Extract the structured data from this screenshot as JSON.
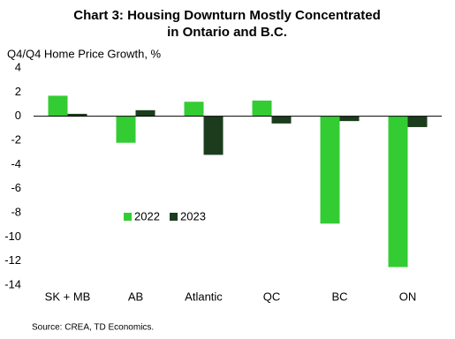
{
  "chart_data": {
    "type": "bar",
    "title": [
      "Chart 3: Housing Downturn Mostly Concentrated",
      "in Ontario and B.C."
    ],
    "y_label": "Q4/Q4 Home Price Growth, %",
    "source": "Source: CREA,  TD Economics.",
    "categories": [
      "SK + MB",
      "AB",
      "Atlantic",
      "QC",
      "BC",
      "ON"
    ],
    "series": [
      {
        "name": "2022",
        "color": "#33cc33",
        "values": [
          1.7,
          -2.2,
          1.2,
          1.3,
          -8.9,
          -12.5
        ]
      },
      {
        "name": "2023",
        "color": "#1b3d1e",
        "values": [
          0.2,
          0.5,
          -3.2,
          -0.6,
          -0.4,
          -0.9
        ]
      }
    ],
    "ylim": [
      -14,
      4
    ],
    "yticks": [
      -14,
      -12,
      -10,
      -8,
      -6,
      -4,
      -2,
      0,
      2,
      4
    ],
    "grid": false
  }
}
